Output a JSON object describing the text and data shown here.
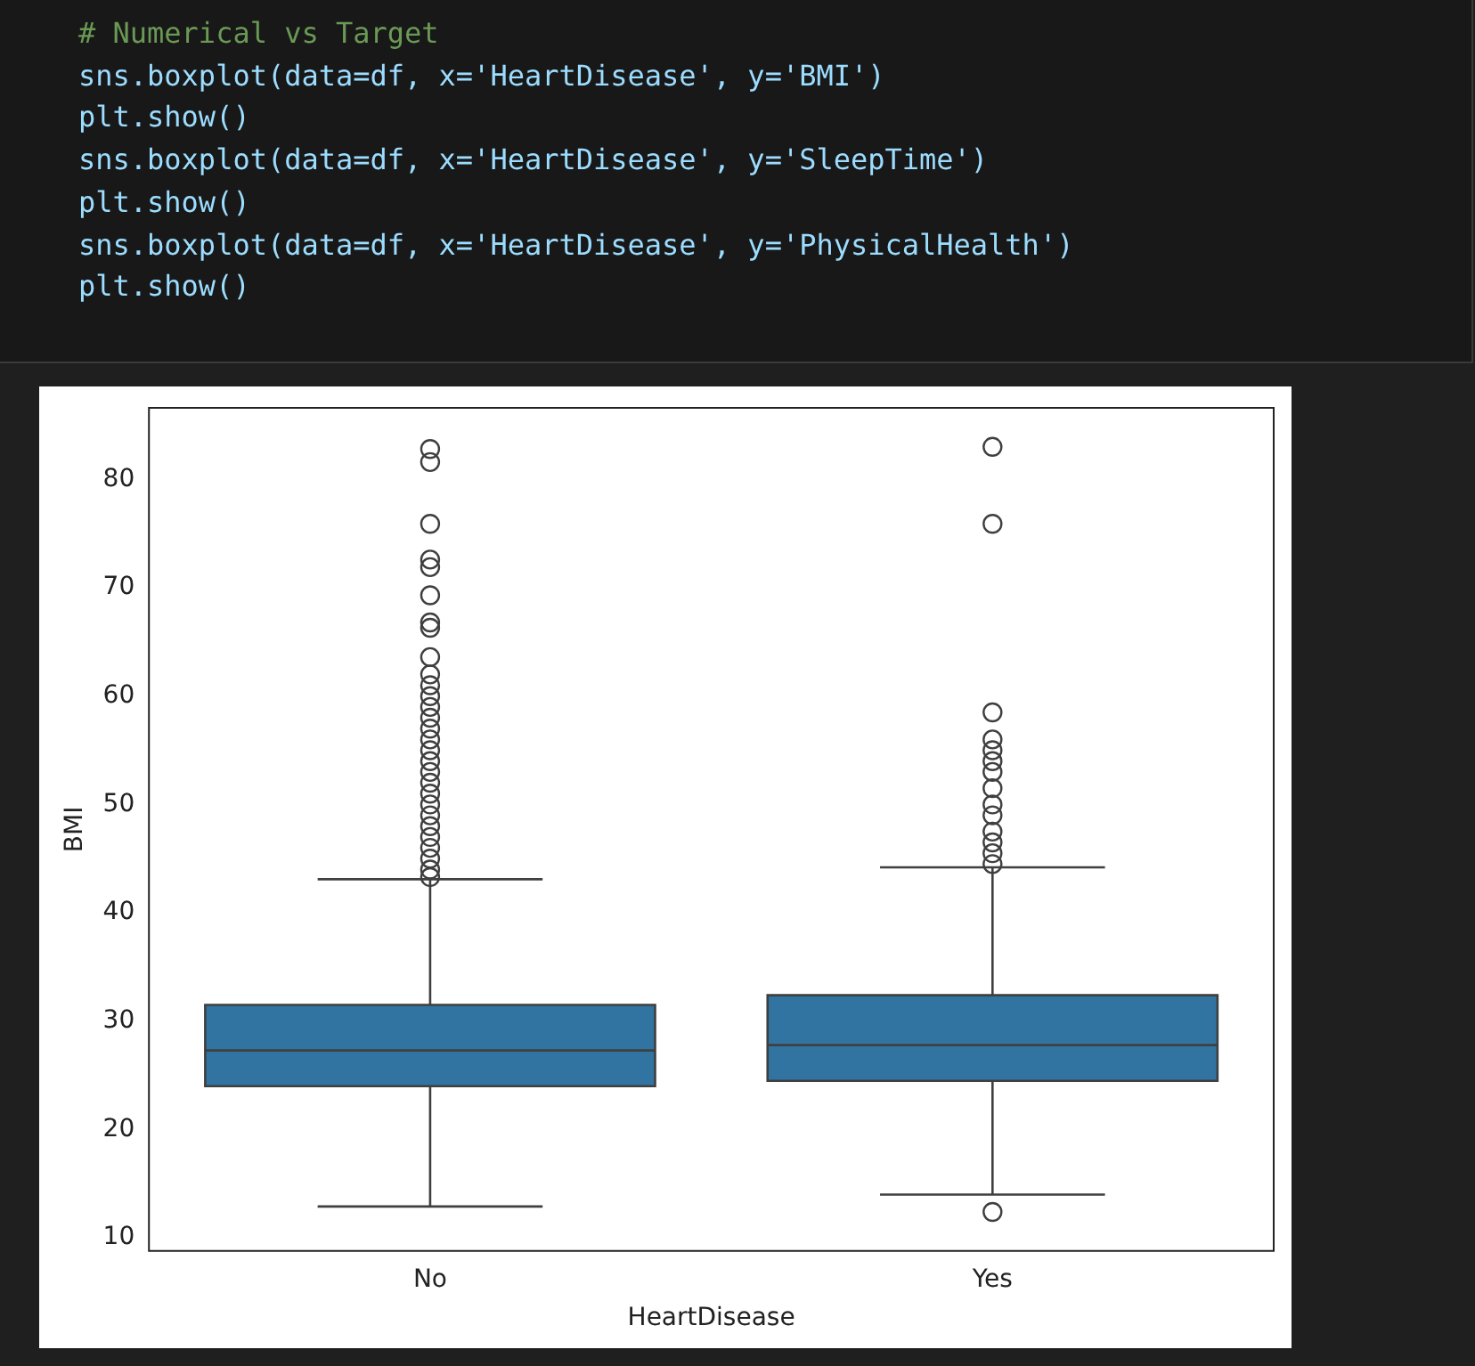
{
  "chart_data": {
    "type": "box",
    "annotations": [
      "# Numerical vs Target",
      "sns.boxplot(data=df, x='HeartDisease', y='BMI')",
      "plt.show()",
      "sns.boxplot(data=df, x='HeartDisease', y='SleepTime')",
      "plt.show()",
      "sns.boxplot(data=df, x='HeartDisease', y='PhysicalHealth')",
      "plt.show()"
    ],
    "xlabel": "HeartDisease",
    "ylabel": "BMI",
    "categories": [
      "No",
      "Yes"
    ],
    "series": [
      {
        "color": "#3274a1",
        "boxes": [
          {
            "low": 12.9,
            "q1": 24.0,
            "median": 27.3,
            "q3": 31.5,
            "high": 43.1,
            "outliers": [
              43.3,
              44,
              45,
              46,
              47,
              48,
              49,
              50,
              51,
              52,
              53,
              54,
              55,
              56,
              57,
              58,
              59,
              60,
              61,
              62,
              63.6,
              66.3,
              66.8,
              69.3,
              71.9,
              72.6,
              75.9,
              81.6,
              82.8
            ]
          },
          {
            "low": 14.0,
            "q1": 24.5,
            "median": 27.8,
            "q3": 32.4,
            "high": 44.2,
            "outliers": [
              12.4,
              44.5,
              45.5,
              46.5,
              47.5,
              49,
              50,
              51.5,
              53,
              54,
              55,
              56,
              58.5,
              75.9,
              83.0
            ]
          }
        ]
      }
    ],
    "ylim": [
      8.8,
      86.6
    ],
    "yticks": [
      10,
      20,
      30,
      40,
      50,
      60,
      70,
      80
    ],
    "grid": false,
    "legend": false
  }
}
